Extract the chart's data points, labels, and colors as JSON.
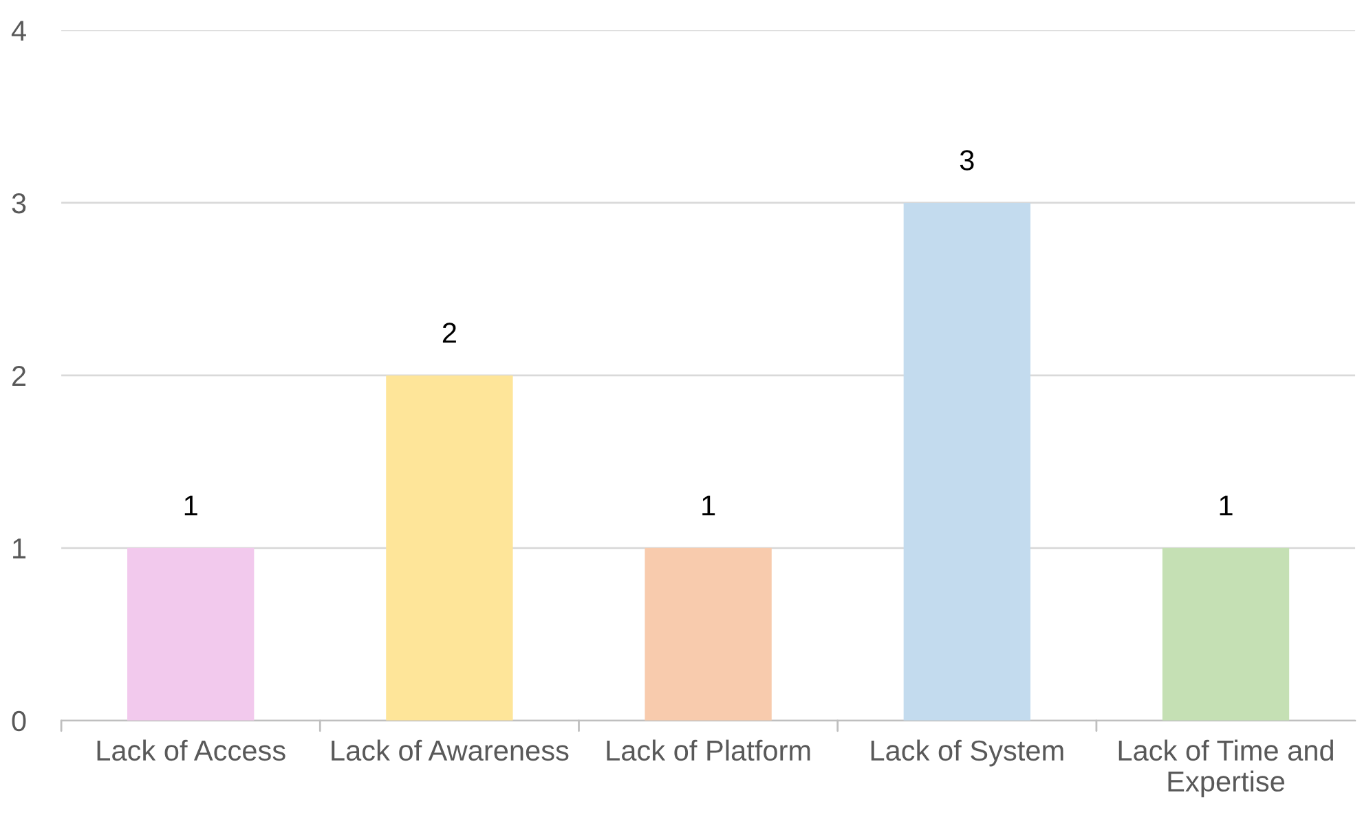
{
  "chart_data": {
    "type": "bar",
    "categories": [
      "Lack of Access",
      "Lack of Awareness",
      "Lack of Platform",
      "Lack of System",
      "Lack of Time and\nExpertise"
    ],
    "values": [
      1,
      2,
      1,
      3,
      1
    ],
    "colors": [
      "#f2c9ed",
      "#fee599",
      "#f8cbad",
      "#c3dbee",
      "#c5e0b4"
    ],
    "ylim": [
      0,
      4
    ],
    "yticks": [
      0,
      1,
      2,
      3,
      4
    ],
    "grid": "y",
    "data_labels": true
  }
}
